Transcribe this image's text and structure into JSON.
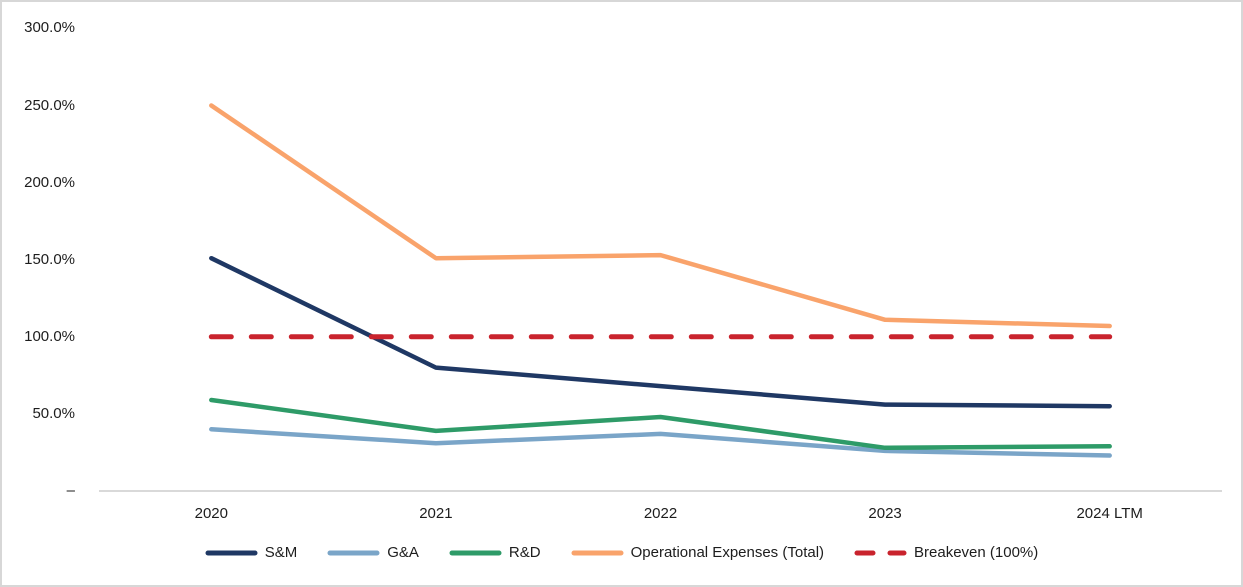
{
  "window": {
    "background": "#ffffff",
    "border_color": "#d7d7d7",
    "axis_line_color": "#d9d9d9",
    "text_color": "#1d1d1d"
  },
  "chart_data": {
    "type": "line",
    "title": "",
    "xlabel": "",
    "ylabel": "",
    "grid": false,
    "legend_position": "bottom",
    "categories": [
      "2020",
      "2021",
      "2022",
      "2023",
      "2024 LTM"
    ],
    "series": [
      {
        "name": "S&M",
        "color": "#1F3864",
        "style": "solid",
        "values": [
          151,
          80,
          68,
          56,
          55
        ]
      },
      {
        "name": "G&A",
        "color": "#7AA5C8",
        "style": "solid",
        "values": [
          40,
          31,
          37,
          26,
          23
        ]
      },
      {
        "name": "R&D",
        "color": "#2E9B68",
        "style": "solid",
        "values": [
          59,
          39,
          48,
          28,
          29
        ]
      },
      {
        "name": "Operational Expenses (Total)",
        "color": "#F9A36B",
        "style": "solid",
        "values": [
          250,
          151,
          153,
          111,
          107
        ]
      },
      {
        "name": "Breakeven (100%)",
        "color": "#C9232D",
        "style": "dashed",
        "values": [
          100,
          100,
          100,
          100,
          100
        ]
      }
    ],
    "y_axis": {
      "min": 0,
      "max": 300,
      "ticks": [
        {
          "value": 300,
          "label": "300.0%"
        },
        {
          "value": 250,
          "label": "250.0%"
        },
        {
          "value": 200,
          "label": "200.0%"
        },
        {
          "value": 150,
          "label": "150.0%"
        },
        {
          "value": 100,
          "label": "100.0%"
        },
        {
          "value": 50,
          "label": "50.0%"
        },
        {
          "value": 0,
          "label": "–"
        }
      ]
    }
  }
}
